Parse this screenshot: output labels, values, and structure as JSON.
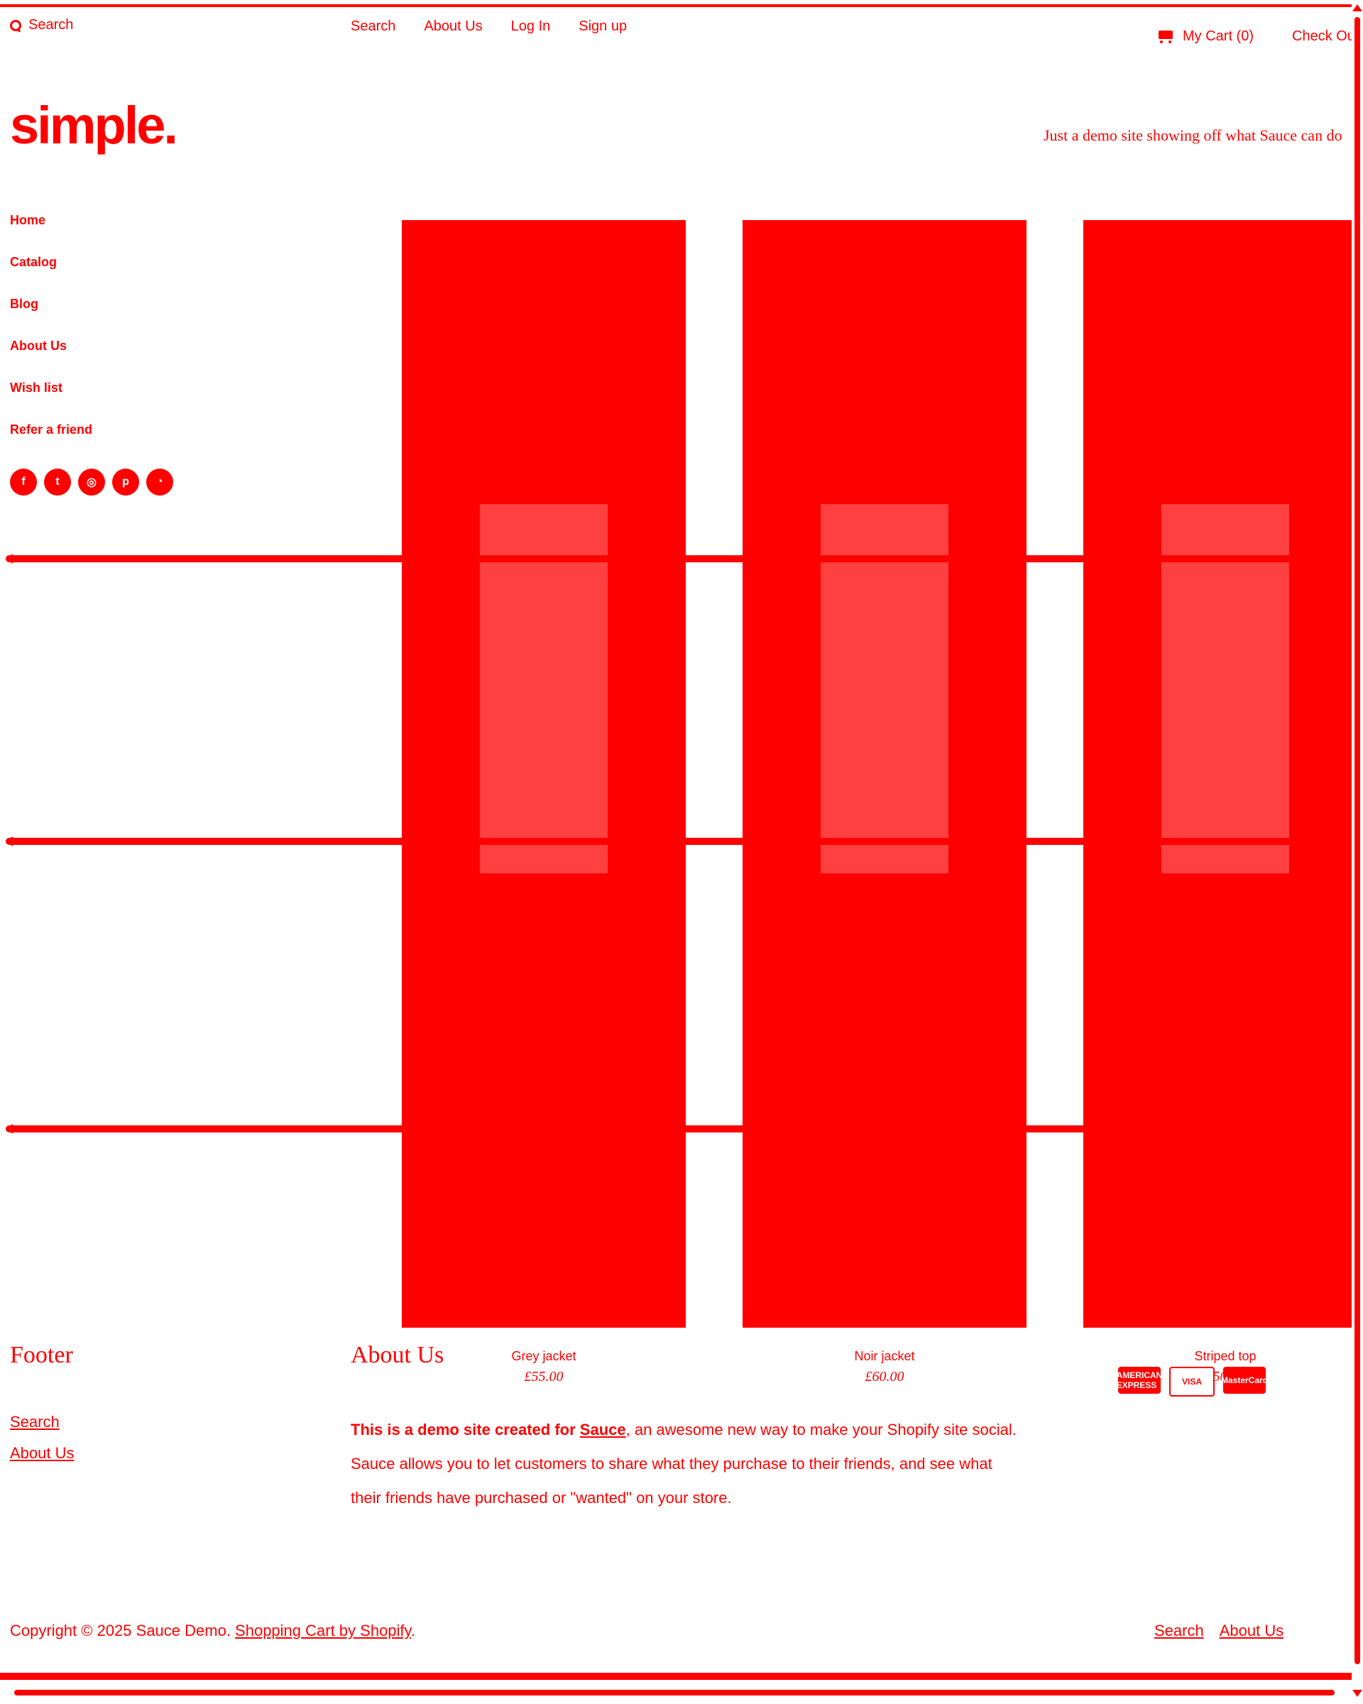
{
  "header": {
    "search_label": "Search",
    "nav": [
      "Search",
      "About Us",
      "Log In",
      "Sign up"
    ],
    "cart_label": "My Cart (0)",
    "checkout_label": "Check Out"
  },
  "brand": {
    "logo": "simple.",
    "tagline": "Just a demo site showing off what Sauce can do"
  },
  "sidebar": {
    "items": [
      "Home",
      "Catalog",
      "Blog",
      "About Us",
      "Wish list",
      "Refer a friend"
    ],
    "social_icons": [
      "facebook-icon",
      "twitter-icon",
      "instagram-icon",
      "pinterest-icon",
      "rss-icon"
    ]
  },
  "products": [
    {
      "name": "Grey jacket",
      "price": "£55.00"
    },
    {
      "name": "Noir jacket",
      "price": "£60.00"
    },
    {
      "name": "Striped top",
      "price": "£50.00"
    }
  ],
  "footer": {
    "title": "Footer",
    "links": [
      "Search",
      "About Us"
    ],
    "about_title": "About Us",
    "about_text_prefix": "This is a demo site created for ",
    "about_link": "Sauce",
    "about_text_suffix": ", an awesome new way to make your Shopify site social. Sauce allows you to let customers to share what they purchase to their friends, and see what their friends have purchased or \"wanted\" on your store.",
    "payments": [
      "AMERICAN EXPRESS",
      "VISA",
      "MasterCard"
    ],
    "copyright_prefix": "Copyright © 2025 Sauce Demo. ",
    "copyright_link": "Shopping Cart by Shopify",
    "copyright_suffix": ".",
    "bottom_links": [
      "Search",
      "About Us"
    ]
  },
  "colors": {
    "accent": "#ff0000",
    "background": "#ffffff"
  }
}
